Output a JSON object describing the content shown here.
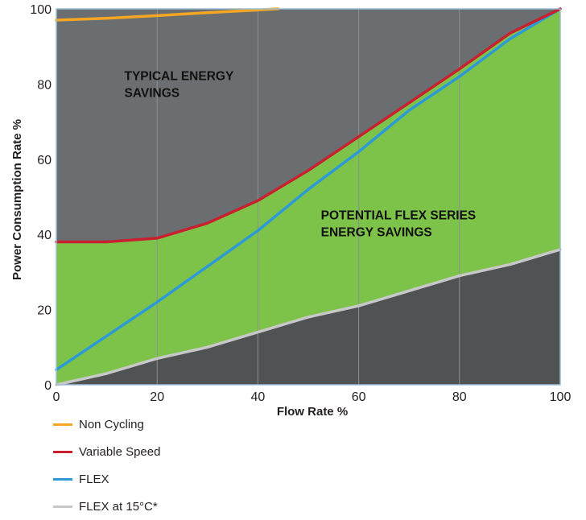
{
  "chart_data": {
    "type": "area",
    "xlabel": "Flow Rate %",
    "ylabel": "Power Consumption Rate %",
    "xlim": [
      0,
      100
    ],
    "ylim": [
      0,
      100
    ],
    "x_ticks": [
      "0",
      "20",
      "40",
      "60",
      "80",
      "100"
    ],
    "y_ticks": [
      "0",
      "20",
      "40",
      "60",
      "80",
      "100"
    ],
    "grid": true,
    "legend_position": "bottom-left",
    "annotations": [
      {
        "lines": [
          "TYPICAL ENERGY",
          "SAVINGS"
        ],
        "x": 13.5,
        "y": 81
      },
      {
        "lines": [
          "POTENTIAL FLEX SERIES",
          "ENERGY SAVINGS"
        ],
        "x": 52.5,
        "y": 44
      }
    ],
    "series": [
      {
        "name": "Non Cycling",
        "color": "#f5a623",
        "x": [
          0,
          10,
          20,
          30,
          40,
          44
        ],
        "y": [
          97,
          97.5,
          98.2,
          99,
          99.7,
          100
        ]
      },
      {
        "name": "Variable Speed",
        "color": "#c8202f",
        "x": [
          0,
          10,
          20,
          30,
          40,
          50,
          60,
          70,
          80,
          90,
          100
        ],
        "y": [
          38,
          38,
          39,
          43,
          49,
          57,
          66,
          75,
          84,
          93.5,
          100
        ]
      },
      {
        "name": "FLEX",
        "color": "#2d9ad6",
        "x": [
          0,
          10,
          20,
          30,
          40,
          50,
          60,
          70,
          80,
          90,
          100
        ],
        "y": [
          4,
          13,
          22,
          31.5,
          41,
          52,
          62,
          73,
          82,
          92,
          100
        ]
      },
      {
        "name": "FLEX at 15°C*",
        "color": "#c8c8c8",
        "x": [
          0,
          10,
          20,
          30,
          40,
          50,
          60,
          70,
          80,
          90,
          100
        ],
        "y": [
          0,
          3,
          7,
          10,
          14,
          18,
          21,
          25,
          29,
          32,
          36
        ]
      }
    ],
    "fills": {
      "top_region": "#6b6e70",
      "green_region": "#7dc34a",
      "bottom_region": "#4f5354",
      "grid_color": "#8c9092",
      "frame_color": "#9bbdd3"
    }
  }
}
